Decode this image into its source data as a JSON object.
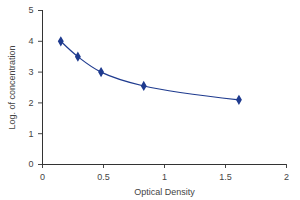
{
  "chart_data": {
    "type": "line",
    "x_label": "Optical Density",
    "y_label": "Log. of concentration",
    "x": [
      0.15,
      0.29,
      0.48,
      0.83,
      1.61
    ],
    "values": [
      4.0,
      3.5,
      3.0,
      2.55,
      2.1
    ],
    "color": "#1f3b8f",
    "marker": "diamond",
    "line_style": "solid",
    "xlim": [
      0,
      2
    ],
    "xticks": [
      0,
      0.5,
      1,
      1.5,
      2
    ],
    "ylim": [
      0,
      5
    ],
    "yticks": [
      0,
      1,
      2,
      3,
      4,
      5
    ],
    "grid": false
  }
}
